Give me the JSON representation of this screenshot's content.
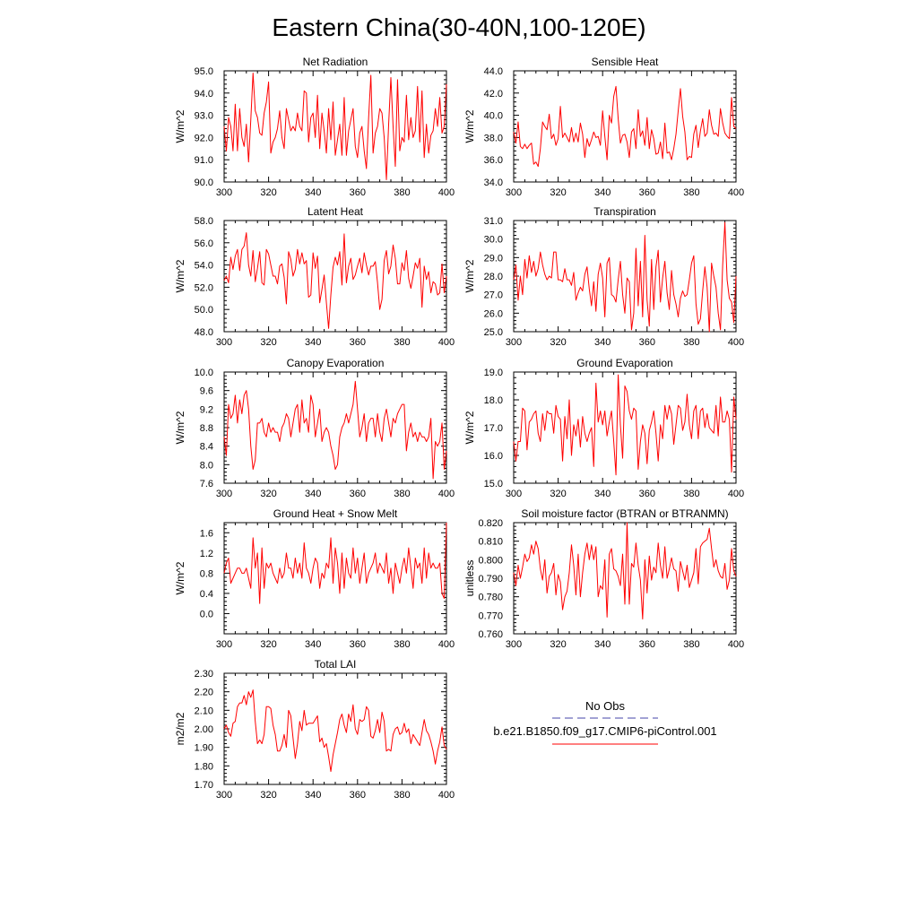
{
  "figure": {
    "title": "Eastern China(30-40N,100-120E)",
    "legend": {
      "entries": [
        {
          "label": "No Obs",
          "color": "#4444aa",
          "style": "dashed"
        },
        {
          "label": "b.e21.B1850.f09_g17.CMIP6-piControl.001",
          "color": "#ff0000",
          "style": "solid"
        }
      ]
    },
    "line_color": "#ff0000"
  },
  "chart_data": [
    {
      "type": "line",
      "title": "Net Radiation",
      "ylabel": "W/m^2",
      "xlim": [
        300,
        400
      ],
      "ylim": [
        90.0,
        95.0
      ],
      "xticks": [
        "300",
        "320",
        "340",
        "360",
        "380",
        "400"
      ],
      "yticks": [
        "90.0",
        "91.0",
        "92.0",
        "93.0",
        "94.0",
        "95.0"
      ],
      "x_start": 300,
      "values": [
        92.5,
        91.4,
        92.9,
        92.5,
        91.4,
        93.5,
        91.4,
        93.3,
        92.0,
        91.6,
        92.6,
        90.9,
        92.8,
        94.9,
        93.2,
        92.9,
        92.2,
        92.1,
        93.1,
        93.6,
        94.5,
        91.3,
        91.8,
        92.0,
        92.4,
        93.2,
        92.0,
        91.5,
        93.3,
        92.8,
        92.3,
        92.5,
        92.3,
        93.1,
        92.5,
        92.3,
        94.1,
        94.0,
        91.8,
        92.9,
        93.1,
        92.0,
        93.9,
        91.5,
        93.1,
        92.3,
        91.3,
        93.3,
        91.9,
        93.6,
        91.2,
        91.9,
        92.6,
        91.2,
        93.8,
        91.2,
        92.3,
        92.8,
        93.3,
        91.6,
        91.1,
        92.2,
        92.5,
        91.4,
        90.6,
        92.9,
        94.8,
        91.3,
        92.2,
        92.5,
        93.3,
        93.1,
        92.0,
        90.1,
        92.6,
        94.7,
        92.5,
        90.7,
        94.6,
        91.4,
        92.0,
        91.8,
        93.9,
        91.9,
        92.9,
        92.0,
        92.3,
        94.3,
        91.8,
        94.1,
        91.1,
        92.6,
        91.3,
        92.1,
        92.3,
        93.3,
        92.5,
        93.8,
        92.2,
        92.5,
        94.4
      ]
    },
    {
      "type": "line",
      "title": "Sensible Heat",
      "ylabel": "W/m^2",
      "xlim": [
        300,
        400
      ],
      "ylim": [
        34.0,
        44.0
      ],
      "xticks": [
        "300",
        "320",
        "340",
        "360",
        "380",
        "400"
      ],
      "yticks": [
        "34.0",
        "36.0",
        "38.0",
        "40.0",
        "42.0",
        "44.0"
      ],
      "x_start": 300,
      "values": [
        38.5,
        37.5,
        39.4,
        37.2,
        37.0,
        37.4,
        37.0,
        37.3,
        37.5,
        35.6,
        35.8,
        35.4,
        37.0,
        39.4,
        39.0,
        38.7,
        40.1,
        37.9,
        38.3,
        37.3,
        37.9,
        40.8,
        38.0,
        38.4,
        38.0,
        37.6,
        38.9,
        37.6,
        38.4,
        37.6,
        39.3,
        38.3,
        36.2,
        37.9,
        37.2,
        37.8,
        38.5,
        38.0,
        38.1,
        37.3,
        40.4,
        38.1,
        36.0,
        40.0,
        39.3,
        41.7,
        42.6,
        39.7,
        37.5,
        38.2,
        38.3,
        37.6,
        36.2,
        38.5,
        38.8,
        37.0,
        40.5,
        38.1,
        38.6,
        37.3,
        39.8,
        37.0,
        38.7,
        37.9,
        36.5,
        36.6,
        37.6,
        36.1,
        39.3,
        36.6,
        36.7,
        36.0,
        37.0,
        38.3,
        40.4,
        42.4,
        39.9,
        38.5,
        36.0,
        36.3,
        36.2,
        38.3,
        39.1,
        37.1,
        38.6,
        39.7,
        38.1,
        38.4,
        40.5,
        39.1,
        38.3,
        38.4,
        38.1,
        40.6,
        39.3,
        38.4,
        38.1,
        37.9,
        41.6,
        39.0,
        38.8
      ]
    },
    {
      "type": "line",
      "title": "Latent Heat",
      "ylabel": "W/m^2",
      "xlim": [
        300,
        400
      ],
      "ylim": [
        48.0,
        58.0
      ],
      "xticks": [
        "300",
        "320",
        "340",
        "360",
        "380",
        "400"
      ],
      "yticks": [
        "48.0",
        "50.0",
        "52.0",
        "54.0",
        "56.0",
        "58.0"
      ],
      "x_start": 300,
      "values": [
        52.6,
        53.0,
        52.4,
        54.7,
        53.6,
        54.8,
        55.4,
        53.5,
        55.4,
        55.7,
        56.9,
        54.0,
        53.0,
        55.3,
        52.5,
        53.7,
        55.2,
        52.4,
        52.2,
        55.4,
        55.0,
        54.0,
        53.0,
        53.0,
        52.3,
        53.9,
        54.1,
        52.9,
        50.5,
        55.2,
        54.5,
        53.0,
        53.6,
        55.4,
        54.1,
        55.1,
        54.1,
        54.4,
        51.1,
        51.3,
        55.1,
        53.7,
        54.8,
        50.6,
        51.8,
        53.1,
        50.6,
        48.3,
        51.3,
        53.8,
        54.7,
        54.0,
        55.2,
        52.2,
        56.8,
        52.4,
        53.9,
        54.6,
        52.7,
        53.1,
        53.9,
        54.6,
        53.3,
        55.1,
        54.0,
        53.1,
        53.9,
        53.9,
        54.3,
        52.4,
        50.0,
        50.9,
        54.4,
        55.3,
        53.2,
        53.9,
        55.8,
        54.6,
        52.3,
        52.3,
        54.2,
        53.5,
        55.3,
        52.8,
        51.9,
        53.0,
        54.2,
        53.7,
        54.6,
        50.2,
        53.9,
        52.7,
        53.4,
        51.5,
        52.5,
        52.3,
        51.3,
        51.5,
        54.1,
        51.5,
        53.0
      ]
    },
    {
      "type": "line",
      "title": "Transpiration",
      "ylabel": "W/m^2",
      "xlim": [
        300,
        400
      ],
      "ylim": [
        25.0,
        31.0
      ],
      "xticks": [
        "300",
        "320",
        "340",
        "360",
        "380",
        "400"
      ],
      "yticks": [
        "25.0",
        "26.0",
        "27.0",
        "28.0",
        "29.0",
        "30.0",
        "31.0"
      ],
      "x_start": 300,
      "values": [
        27.8,
        28.6,
        26.7,
        28.0,
        27.0,
        28.9,
        27.9,
        29.1,
        28.2,
        28.8,
        28.0,
        28.4,
        29.3,
        28.6,
        28.1,
        27.8,
        28.0,
        27.9,
        29.3,
        29.3,
        27.8,
        27.8,
        27.7,
        28.4,
        27.8,
        27.8,
        27.5,
        28.2,
        26.7,
        27.1,
        27.4,
        27.2,
        28.1,
        28.5,
        27.3,
        26.4,
        27.7,
        26.1,
        28.1,
        28.7,
        27.9,
        25.8,
        28.7,
        29.0,
        27.0,
        26.9,
        26.6,
        27.8,
        28.8,
        27.0,
        26.0,
        27.9,
        27.7,
        25.1,
        26.0,
        29.5,
        26.4,
        28.8,
        25.8,
        30.2,
        26.7,
        25.3,
        28.9,
        26.2,
        28.5,
        29.4,
        26.6,
        27.9,
        28.8,
        27.1,
        26.2,
        28.3,
        27.0,
        26.5,
        25.8,
        26.8,
        27.2,
        26.9,
        27.0,
        27.8,
        28.7,
        29.1,
        26.5,
        25.4,
        25.7,
        27.2,
        28.5,
        27.4,
        25.0,
        28.7,
        28.0,
        27.4,
        26.0,
        25.1,
        28.6,
        30.9,
        27.8,
        26.8,
        26.6,
        25.5,
        28.0
      ]
    },
    {
      "type": "line",
      "title": "Canopy Evaporation",
      "ylabel": "W/m^2",
      "xlim": [
        300,
        400
      ],
      "ylim": [
        7.6,
        10.0
      ],
      "xticks": [
        "300",
        "320",
        "340",
        "360",
        "380",
        "400"
      ],
      "yticks": [
        "7.6",
        "8.0",
        "8.4",
        "8.8",
        "9.2",
        "9.6",
        "10.0"
      ],
      "x_start": 300,
      "values": [
        8.6,
        8.2,
        9.3,
        9.0,
        9.1,
        9.5,
        8.9,
        9.4,
        9.1,
        9.5,
        9.6,
        9.2,
        8.4,
        7.9,
        8.1,
        8.9,
        8.9,
        9.0,
        8.7,
        8.6,
        8.9,
        8.7,
        8.8,
        8.7,
        8.7,
        8.5,
        8.8,
        8.9,
        9.1,
        9.0,
        8.6,
        8.9,
        9.2,
        9.3,
        8.7,
        9.4,
        8.9,
        9.0,
        8.7,
        9.5,
        9.3,
        8.6,
        8.9,
        9.2,
        8.5,
        8.7,
        8.8,
        8.7,
        8.4,
        8.2,
        7.9,
        8.0,
        8.6,
        8.8,
        8.9,
        9.1,
        8.9,
        9.1,
        9.3,
        9.8,
        9.2,
        8.6,
        8.8,
        9.1,
        8.5,
        8.9,
        9.0,
        9.0,
        8.6,
        9.1,
        8.7,
        8.5,
        9.0,
        9.2,
        8.9,
        8.6,
        9.0,
        8.9,
        9.1,
        9.2,
        9.3,
        9.3,
        8.3,
        8.7,
        8.9,
        8.6,
        8.7,
        8.5,
        8.7,
        8.6,
        8.6,
        8.5,
        8.6,
        9.0,
        7.7,
        8.5,
        8.4,
        8.5,
        8.9,
        7.9,
        8.3
      ]
    },
    {
      "type": "line",
      "title": "Ground Evaporation",
      "ylabel": "W/m^2",
      "xlim": [
        300,
        400
      ],
      "ylim": [
        15.0,
        19.0
      ],
      "xticks": [
        "300",
        "320",
        "340",
        "360",
        "380",
        "400"
      ],
      "yticks": [
        "15.0",
        "16.0",
        "17.0",
        "18.0",
        "19.0"
      ],
      "x_start": 300,
      "values": [
        16.5,
        15.8,
        16.5,
        16.5,
        17.7,
        17.6,
        16.2,
        17.2,
        17.3,
        17.5,
        17.6,
        16.8,
        16.5,
        17.5,
        16.9,
        17.6,
        17.5,
        17.5,
        16.8,
        17.8,
        17.4,
        17.3,
        15.8,
        17.4,
        16.6,
        18.0,
        16.0,
        17.1,
        16.7,
        17.3,
        16.3,
        17.4,
        16.8,
        16.5,
        16.8,
        17.0,
        15.6,
        18.6,
        17.2,
        17.6,
        17.1,
        17.6,
        16.7,
        17.2,
        17.6,
        16.5,
        15.3,
        18.9,
        17.1,
        15.9,
        18.5,
        18.3,
        17.6,
        17.3,
        17.7,
        17.6,
        15.5,
        16.5,
        17.1,
        16.8,
        15.7,
        16.9,
        17.2,
        17.6,
        16.8,
        15.8,
        17.1,
        16.6,
        17.8,
        17.3,
        17.8,
        17.5,
        16.4,
        17.1,
        17.8,
        17.7,
        16.9,
        17.2,
        18.2,
        17.1,
        16.6,
        17.6,
        17.8,
        16.6,
        17.6,
        17.7,
        17.0,
        17.5,
        17.0,
        16.9,
        16.8,
        17.8,
        16.7,
        18.1,
        17.2,
        17.2,
        17.6,
        17.3,
        15.4,
        18.1,
        17.3
      ]
    },
    {
      "type": "line",
      "title": "Ground Heat + Snow Melt",
      "ylabel": "W/m^2",
      "xlim": [
        300,
        400
      ],
      "ylim": [
        -0.4,
        1.8
      ],
      "xticks": [
        "300",
        "320",
        "340",
        "360",
        "380",
        "400"
      ],
      "yticks": [
        "0.0",
        "0.4",
        "0.8",
        "1.2",
        "1.6"
      ],
      "x_start": 300,
      "values": [
        0.8,
        1.0,
        1.1,
        0.6,
        0.7,
        0.8,
        0.9,
        0.9,
        0.8,
        0.8,
        0.9,
        0.7,
        0.5,
        1.5,
        0.9,
        1.2,
        0.2,
        1.3,
        0.5,
        1.0,
        0.9,
        1.0,
        0.8,
        0.7,
        0.6,
        0.9,
        0.7,
        0.8,
        1.2,
        0.9,
        0.9,
        0.7,
        1.1,
        0.8,
        1.0,
        0.7,
        1.4,
        0.9,
        0.8,
        0.6,
        0.9,
        1.1,
        1.0,
        0.5,
        0.8,
        0.7,
        1.0,
        0.9,
        1.5,
        0.6,
        1.3,
        1.0,
        0.4,
        1.2,
        0.5,
        1.1,
        0.8,
        0.7,
        1.3,
        0.8,
        1.1,
        0.6,
        0.9,
        1.2,
        0.6,
        0.8,
        0.9,
        1.0,
        1.2,
        0.8,
        1.0,
        0.9,
        0.8,
        1.2,
        0.6,
        0.9,
        0.4,
        1.0,
        0.8,
        0.6,
        0.9,
        1.1,
        0.8,
        1.3,
        0.9,
        0.5,
        1.1,
        0.9,
        1.0,
        0.6,
        1.3,
        0.7,
        1.2,
        0.9,
        1.0,
        0.9,
        0.9,
        1.0,
        0.4,
        0.3,
        1.8
      ]
    },
    {
      "type": "line",
      "title": "Soil moisture factor (BTRAN or BTRANMN)",
      "ylabel": "unitless",
      "xlim": [
        300,
        400
      ],
      "ylim": [
        0.76,
        0.82
      ],
      "xticks": [
        "300",
        "320",
        "340",
        "360",
        "380",
        "400"
      ],
      "yticks": [
        "0.760",
        "0.770",
        "0.780",
        "0.790",
        "0.800",
        "0.810",
        "0.820"
      ],
      "x_start": 300,
      "values": [
        0.793,
        0.786,
        0.797,
        0.79,
        0.796,
        0.803,
        0.799,
        0.801,
        0.808,
        0.803,
        0.81,
        0.806,
        0.795,
        0.789,
        0.8,
        0.782,
        0.791,
        0.793,
        0.798,
        0.781,
        0.792,
        0.788,
        0.773,
        0.78,
        0.783,
        0.793,
        0.808,
        0.797,
        0.781,
        0.803,
        0.78,
        0.793,
        0.803,
        0.809,
        0.8,
        0.808,
        0.8,
        0.807,
        0.78,
        0.786,
        0.784,
        0.8,
        0.769,
        0.803,
        0.806,
        0.795,
        0.794,
        0.791,
        0.786,
        0.803,
        0.776,
        0.82,
        0.776,
        0.798,
        0.796,
        0.809,
        0.797,
        0.789,
        0.768,
        0.8,
        0.782,
        0.802,
        0.789,
        0.796,
        0.793,
        0.809,
        0.797,
        0.79,
        0.807,
        0.79,
        0.795,
        0.801,
        0.795,
        0.794,
        0.783,
        0.799,
        0.794,
        0.789,
        0.797,
        0.785,
        0.789,
        0.793,
        0.806,
        0.787,
        0.807,
        0.809,
        0.81,
        0.811,
        0.817,
        0.806,
        0.796,
        0.8,
        0.794,
        0.791,
        0.79,
        0.798,
        0.784,
        0.789,
        0.806,
        0.794,
        0.791
      ]
    },
    {
      "type": "line",
      "title": "Total LAI",
      "ylabel": "m2/m2",
      "xlim": [
        300,
        400
      ],
      "ylim": [
        1.7,
        2.3
      ],
      "xticks": [
        "300",
        "320",
        "340",
        "360",
        "380",
        "400"
      ],
      "yticks": [
        "1.70",
        "1.80",
        "1.90",
        "2.00",
        "2.10",
        "2.20",
        "2.30"
      ],
      "x_start": 300,
      "values": [
        2.0,
        2.02,
        1.98,
        1.96,
        2.03,
        2.04,
        2.12,
        2.14,
        2.14,
        2.18,
        2.13,
        2.2,
        2.17,
        2.21,
        2.04,
        1.92,
        1.94,
        1.92,
        1.97,
        2.12,
        2.12,
        2.11,
        2.02,
        1.97,
        1.88,
        1.88,
        1.91,
        1.97,
        1.9,
        2.1,
        2.07,
        1.95,
        1.84,
        1.92,
        2.04,
        1.99,
        2.1,
        2.02,
        2.03,
        2.03,
        2.03,
        2.05,
        2.07,
        1.93,
        1.95,
        1.9,
        1.92,
        1.85,
        1.77,
        1.86,
        1.92,
        1.98,
        2.05,
        2.08,
        2.02,
        1.98,
        2.08,
        2.04,
        2.13,
        2.0,
        1.97,
        2.05,
        2.04,
        2.05,
        2.12,
        2.1,
        1.96,
        1.95,
        1.99,
        2.05,
        1.98,
        2.09,
        2.04,
        1.88,
        1.89,
        1.88,
        1.97,
        2.0,
        2.01,
        1.97,
        1.98,
        2.03,
        1.98,
        2.0,
        1.92,
        1.97,
        1.95,
        1.93,
        1.91,
        1.98,
        2.05,
        1.99,
        1.97,
        1.93,
        1.88,
        1.81,
        1.88,
        1.93,
        2.01,
        1.91,
        1.89
      ]
    }
  ]
}
